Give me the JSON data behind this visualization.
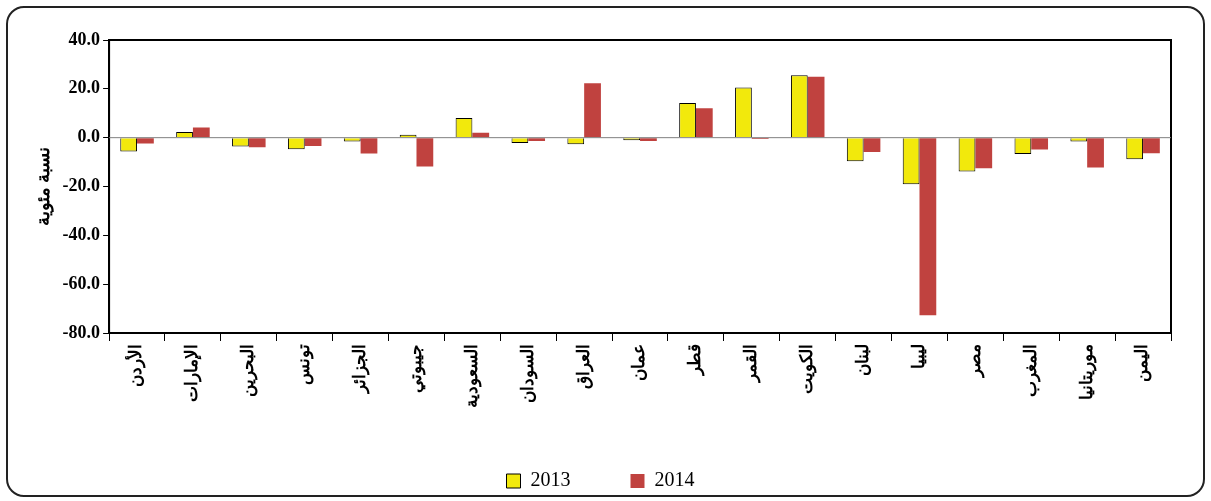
{
  "chart_data": {
    "type": "bar",
    "ylabel": "نسبة مئوية",
    "categories": [
      "الأردن",
      "الإمارات",
      "البحرين",
      "تونس",
      "الجزائر",
      "جيبوتي",
      "السعودية",
      "السودان",
      "العراق",
      "عمان",
      "قطر",
      "القمر",
      "الكويت",
      "لبنان",
      "ليبيا",
      "مصر",
      "المغرب",
      "موريتانيا",
      "اليمن"
    ],
    "series": [
      {
        "name": "2013",
        "color": "#f2e90c",
        "values": [
          -5.7,
          2.3,
          -3.6,
          -4.7,
          -1.6,
          1.2,
          8.1,
          -2.2,
          -2.7,
          -1.1,
          14.2,
          20.5,
          25.6,
          -9.7,
          -19.1,
          -13.9,
          -6.7,
          -1.6,
          -8.8
        ]
      },
      {
        "name": "2014",
        "color": "#c0423f",
        "values": [
          -2.4,
          4.2,
          -3.9,
          -3.4,
          -6.5,
          -11.8,
          2.0,
          -1.4,
          22.3,
          -1.4,
          12.0,
          -0.5,
          25.0,
          -5.9,
          -72.7,
          -12.5,
          -4.8,
          -12.2,
          -6.4
        ]
      }
    ],
    "ylim": [
      -80,
      40
    ],
    "yticks": [
      {
        "value": -80,
        "label": "-80.0"
      },
      {
        "value": -60,
        "label": "-60.0"
      },
      {
        "value": -40,
        "label": "-40.0"
      },
      {
        "value": -20,
        "label": "-20.0"
      },
      {
        "value": 0,
        "label": "0.0"
      },
      {
        "value": 20,
        "label": "20.0"
      },
      {
        "value": 40,
        "label": "40.0"
      }
    ],
    "ref_lines": [
      {
        "axis": "y",
        "value": 0,
        "color": "#808080"
      }
    ],
    "grid": false,
    "legend": "bottom"
  }
}
